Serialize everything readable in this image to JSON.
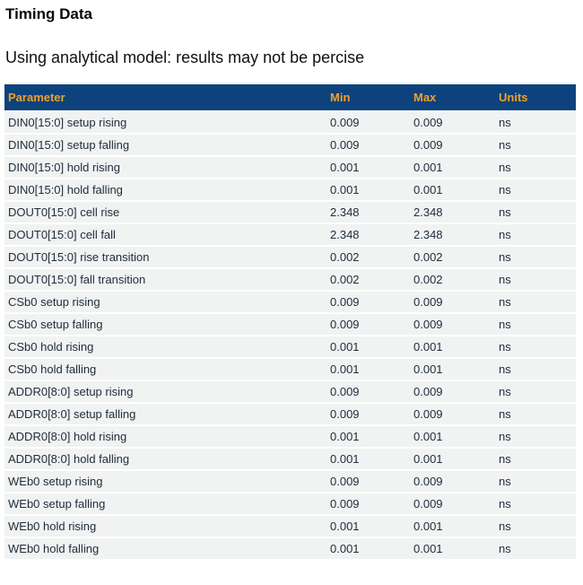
{
  "page": {
    "title": "Timing Data",
    "subtitle": "Using analytical model: results may not be percise"
  },
  "colors": {
    "header_bg": "#0d427c",
    "header_text": "#f0a02e",
    "row_bg": "#f1f2f2",
    "row_text": "#212e3d"
  },
  "table": {
    "columns": [
      "Parameter",
      "Min",
      "Max",
      "Units"
    ],
    "rows": [
      {
        "parameter": "DIN0[15:0] setup rising",
        "min": "0.009",
        "max": "0.009",
        "units": "ns"
      },
      {
        "parameter": "DIN0[15:0] setup falling",
        "min": "0.009",
        "max": "0.009",
        "units": "ns"
      },
      {
        "parameter": "DIN0[15:0] hold rising",
        "min": "0.001",
        "max": "0.001",
        "units": "ns"
      },
      {
        "parameter": "DIN0[15:0] hold falling",
        "min": "0.001",
        "max": "0.001",
        "units": "ns"
      },
      {
        "parameter": "DOUT0[15:0] cell rise",
        "min": "2.348",
        "max": "2.348",
        "units": "ns"
      },
      {
        "parameter": "DOUT0[15:0] cell fall",
        "min": "2.348",
        "max": "2.348",
        "units": "ns"
      },
      {
        "parameter": "DOUT0[15:0] rise transition",
        "min": "0.002",
        "max": "0.002",
        "units": "ns"
      },
      {
        "parameter": "DOUT0[15:0] fall transition",
        "min": "0.002",
        "max": "0.002",
        "units": "ns"
      },
      {
        "parameter": "CSb0 setup rising",
        "min": "0.009",
        "max": "0.009",
        "units": "ns"
      },
      {
        "parameter": "CSb0 setup falling",
        "min": "0.009",
        "max": "0.009",
        "units": "ns"
      },
      {
        "parameter": "CSb0 hold rising",
        "min": "0.001",
        "max": "0.001",
        "units": "ns"
      },
      {
        "parameter": "CSb0 hold falling",
        "min": "0.001",
        "max": "0.001",
        "units": "ns"
      },
      {
        "parameter": "ADDR0[8:0] setup rising",
        "min": "0.009",
        "max": "0.009",
        "units": "ns"
      },
      {
        "parameter": "ADDR0[8:0] setup falling",
        "min": "0.009",
        "max": "0.009",
        "units": "ns"
      },
      {
        "parameter": "ADDR0[8:0] hold rising",
        "min": "0.001",
        "max": "0.001",
        "units": "ns"
      },
      {
        "parameter": "ADDR0[8:0] hold falling",
        "min": "0.001",
        "max": "0.001",
        "units": "ns"
      },
      {
        "parameter": "WEb0 setup rising",
        "min": "0.009",
        "max": "0.009",
        "units": "ns"
      },
      {
        "parameter": "WEb0 setup falling",
        "min": "0.009",
        "max": "0.009",
        "units": "ns"
      },
      {
        "parameter": "WEb0 hold rising",
        "min": "0.001",
        "max": "0.001",
        "units": "ns"
      },
      {
        "parameter": "WEb0 hold falling",
        "min": "0.001",
        "max": "0.001",
        "units": "ns"
      }
    ]
  }
}
